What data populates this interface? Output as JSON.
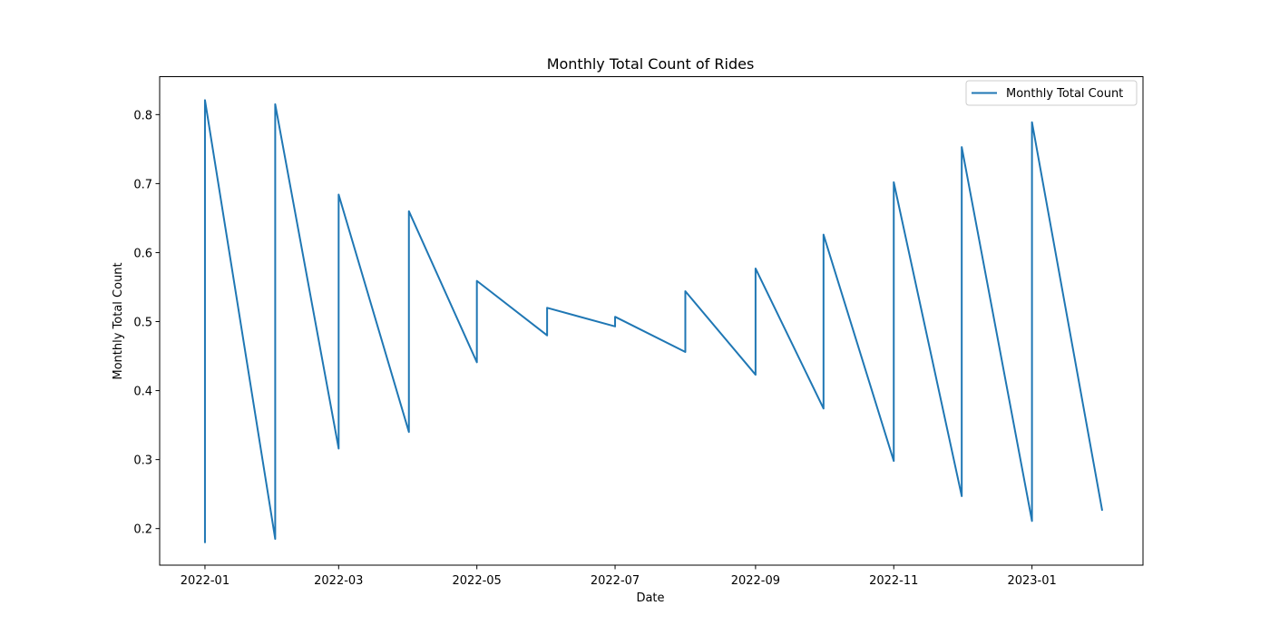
{
  "chart_data": {
    "type": "line",
    "title": "Monthly Total Count of Rides",
    "xlabel": "Date",
    "ylabel": "Monthly Total Count",
    "x_ticks": [
      "2022-01",
      "2022-03",
      "2022-05",
      "2022-07",
      "2022-09",
      "2022-11",
      "2023-01"
    ],
    "y_ticks": [
      "0.2",
      "0.3",
      "0.4",
      "0.5",
      "0.6",
      "0.7",
      "0.8"
    ],
    "xlim": [
      "2021-12-12",
      "2023-02-19"
    ],
    "ylim": [
      0.147,
      0.855
    ],
    "legend": {
      "position": "top-right",
      "entries": [
        "Monthly Total Count"
      ]
    },
    "grid": false,
    "series": [
      {
        "name": "Monthly Total Count",
        "color": "#1f77b4",
        "points": [
          [
            "2022-01-01",
            0.179
          ],
          [
            "2022-01-01",
            0.821
          ],
          [
            "2022-02-01",
            0.185
          ],
          [
            "2022-02-01",
            0.815
          ],
          [
            "2022-03-01",
            0.316
          ],
          [
            "2022-03-01",
            0.684
          ],
          [
            "2022-04-01",
            0.34
          ],
          [
            "2022-04-01",
            0.66
          ],
          [
            "2022-05-01",
            0.441
          ],
          [
            "2022-05-01",
            0.559
          ],
          [
            "2022-06-01",
            0.48
          ],
          [
            "2022-06-01",
            0.52
          ],
          [
            "2022-07-01",
            0.493
          ],
          [
            "2022-07-01",
            0.507
          ],
          [
            "2022-08-01",
            0.456
          ],
          [
            "2022-08-01",
            0.544
          ],
          [
            "2022-09-01",
            0.423
          ],
          [
            "2022-09-01",
            0.577
          ],
          [
            "2022-10-01",
            0.374
          ],
          [
            "2022-10-01",
            0.626
          ],
          [
            "2022-11-01",
            0.298
          ],
          [
            "2022-11-01",
            0.702
          ],
          [
            "2022-12-01",
            0.247
          ],
          [
            "2022-12-01",
            0.753
          ],
          [
            "2023-01-01",
            0.211
          ],
          [
            "2023-01-01",
            0.789
          ],
          [
            "2023-02-01",
            0.226
          ]
        ]
      }
    ]
  }
}
